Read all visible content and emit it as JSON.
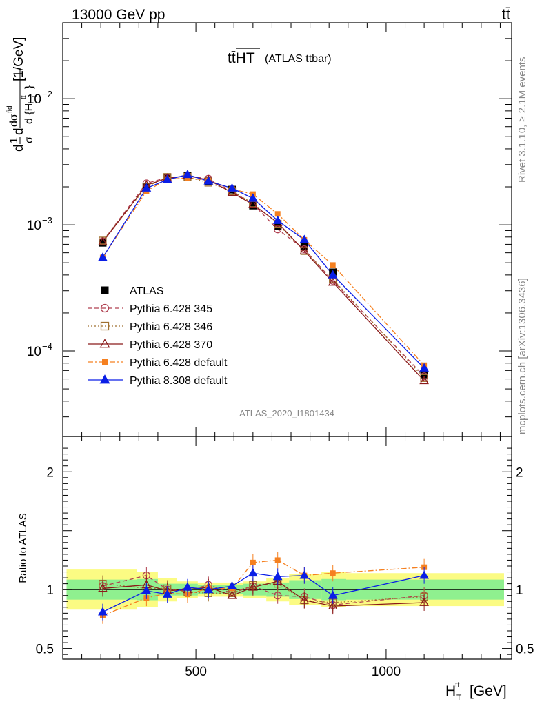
{
  "header": {
    "energy_label": "13000 GeV pp",
    "process_label": "tt̄"
  },
  "chart_data": {
    "type": "line",
    "title": "tt̄HT",
    "title_suffix": "(ATLAS ttbar)",
    "analysis_id": "ATLAS_2020_I1801434",
    "ylabel": "d1/σ dσ^fid/d{H_T^tt} [1/GeV]",
    "ylabel_parts": {
      "prefix": "d",
      "ylabel_tail": "[1/GeV]"
    },
    "xlabel": "H_T^tt [GeV]",
    "xlabel_parts": {
      "main": "H",
      "sub": "T",
      "sup": "tt",
      "unit": "[GeV]"
    },
    "side_labels": {
      "rivet": "Rivet 3.1.10, ≥ 2.1M events",
      "mcplots": "mcplots.cern.ch [arXiv:1306.3436]"
    },
    "xlim": [
      150,
      1330
    ],
    "ylim": [
      2.1e-05,
      0.04
    ],
    "yscale": "log",
    "x_ticks": [
      {
        "value": 500,
        "label": "500"
      },
      {
        "value": 1000,
        "label": "1000"
      }
    ],
    "y_ticks": [
      {
        "value": 0.0001,
        "base": "10",
        "exp": "−4"
      },
      {
        "value": 0.001,
        "base": "10",
        "exp": "−3"
      },
      {
        "value": 0.01,
        "base": "10",
        "exp": "−2"
      }
    ],
    "x": [
      255,
      370,
      425,
      478,
      533,
      595,
      650,
      715,
      785,
      860,
      1100
    ],
    "x_edges": [
      160,
      345,
      400,
      450,
      505,
      560,
      625,
      685,
      745,
      830,
      895,
      1310
    ],
    "series": [
      {
        "name": "ATLAS",
        "color": "#000000",
        "marker": "square",
        "line": "none",
        "values": [
          0.00072,
          0.00198,
          0.00237,
          0.00245,
          0.00222,
          0.0019,
          0.00142,
          0.00097,
          0.00068,
          0.00042,
          6.5e-05
        ]
      },
      {
        "name": "Pythia 6.428 345",
        "color": "#b04050",
        "marker": "open-circle",
        "line": "dashed",
        "values": [
          0.00074,
          0.00213,
          0.00237,
          0.00243,
          0.00232,
          0.00184,
          0.00146,
          0.00092,
          0.00064,
          0.00036,
          6.3e-05
        ]
      },
      {
        "name": "Pythia 6.428 346",
        "color": "#a07030",
        "marker": "open-square",
        "line": "dotted",
        "values": [
          0.00075,
          0.002,
          0.00239,
          0.0024,
          0.00216,
          0.00185,
          0.00148,
          0.00102,
          0.00062,
          0.00037,
          6.1e-05
        ]
      },
      {
        "name": "Pythia 6.428 370",
        "color": "#8b1a1a",
        "marker": "open-triangle",
        "line": "solid",
        "values": [
          0.00073,
          0.00206,
          0.00234,
          0.00245,
          0.00227,
          0.0018,
          0.00145,
          0.00104,
          0.00062,
          0.00035,
          5.8e-05
        ]
      },
      {
        "name": "Pythia 6.428 default",
        "color": "#f58020",
        "marker": "square",
        "line": "dashdot",
        "values": [
          0.00055,
          0.00185,
          0.0023,
          0.00235,
          0.00225,
          0.00192,
          0.00175,
          0.00122,
          0.00076,
          0.00048,
          7.7e-05
        ]
      },
      {
        "name": "Pythia 8.308 default",
        "color": "#0a1ee6",
        "marker": "triangle",
        "line": "solid",
        "values": [
          0.00055,
          0.00195,
          0.00228,
          0.0025,
          0.00222,
          0.00195,
          0.00162,
          0.00108,
          0.00076,
          0.0004,
          7.3e-05
        ]
      }
    ],
    "ratio": {
      "ylabel": "Ratio to ATLAS",
      "ylim": [
        0.41,
        2.3
      ],
      "y_ticks": [
        {
          "value": 0.5,
          "label": "0.5"
        },
        {
          "value": 1,
          "label": "1"
        },
        {
          "value": 2,
          "label": "2"
        }
      ],
      "band_inner": [
        0.085,
        0.09,
        0.05,
        0.05,
        0.04,
        0.04,
        0.05,
        0.06,
        0.08,
        0.09,
        0.085
      ],
      "band_outer": [
        0.17,
        0.15,
        0.1,
        0.07,
        0.06,
        0.06,
        0.07,
        0.1,
        0.13,
        0.15,
        0.14
      ],
      "band_inner_color": "#8ff08f",
      "band_outer_color": "#fbfb83",
      "series": [
        {
          "name": "Pythia 6.428 345",
          "values": [
            1.03,
            1.12,
            1.0,
            0.99,
            1.04,
            0.97,
            1.03,
            0.95,
            0.94,
            0.87,
            0.95
          ]
        },
        {
          "name": "Pythia 6.428 346",
          "values": [
            1.05,
            1.01,
            1.01,
            0.98,
            0.97,
            0.97,
            1.04,
            1.05,
            0.91,
            0.89,
            0.94
          ]
        },
        {
          "name": "Pythia 6.428 370",
          "values": [
            1.01,
            1.04,
            0.99,
            1.0,
            1.02,
            0.95,
            1.02,
            1.07,
            0.91,
            0.86,
            0.89
          ]
        },
        {
          "name": "Pythia 6.428 default",
          "values": [
            0.78,
            0.93,
            0.97,
            0.96,
            1.01,
            1.01,
            1.23,
            1.25,
            1.12,
            1.14,
            1.19
          ]
        },
        {
          "name": "Pythia 8.308 default",
          "values": [
            0.81,
            0.99,
            0.96,
            1.02,
            1.0,
            1.03,
            1.14,
            1.11,
            1.12,
            0.95,
            1.12
          ]
        }
      ]
    }
  }
}
